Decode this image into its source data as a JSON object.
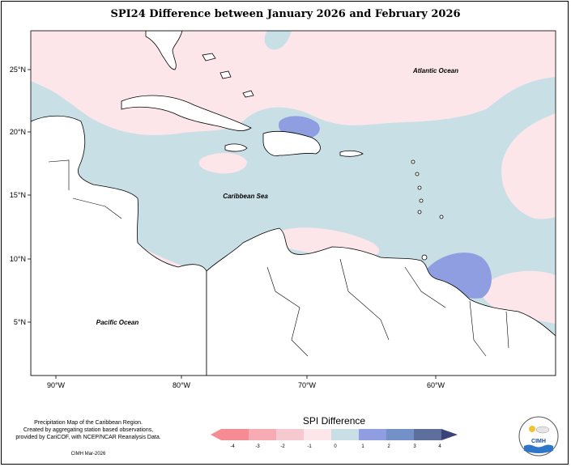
{
  "title": "SPI24 Difference between January 2026 and February 2026",
  "map": {
    "lat_ticks": [
      "25°N",
      "20°N",
      "15°N",
      "10°N",
      "5°N"
    ],
    "lon_ticks": [
      "90°W",
      "80°W",
      "70°W",
      "60°W"
    ],
    "labels": {
      "atlantic": "Atlantic Ocean",
      "caribbean": "Caribbean Sea",
      "pacific": "Pacific Ocean"
    },
    "colors": {
      "neutral_blue": "#c9dfe6",
      "light_pink": "#fde6ea",
      "pink": "#f6c9d0",
      "medium_blue": "#8e9ee0",
      "land": "#ffffff"
    }
  },
  "legend": {
    "title": "SPI Difference",
    "ticks": [
      "-4",
      "-3",
      "-2",
      "-1",
      "0",
      "1",
      "2",
      "3",
      "4"
    ],
    "colors": [
      "#f58b93",
      "#f7acb3",
      "#f6c9d0",
      "#fde6ea",
      "#c9dfe6",
      "#8e9ee0",
      "#7390c8",
      "#5d6f9c",
      "#3a4278"
    ]
  },
  "credit": {
    "line1": "Precipitation Map of the Caribbean Region.",
    "line2": "Created by aggregating station based observations,",
    "line3": "provided by CariCOF, with NCEP/NCAR Reanalysis Data.",
    "date": "CIMH Mar-2026"
  },
  "logo": {
    "text": "CIMH"
  }
}
